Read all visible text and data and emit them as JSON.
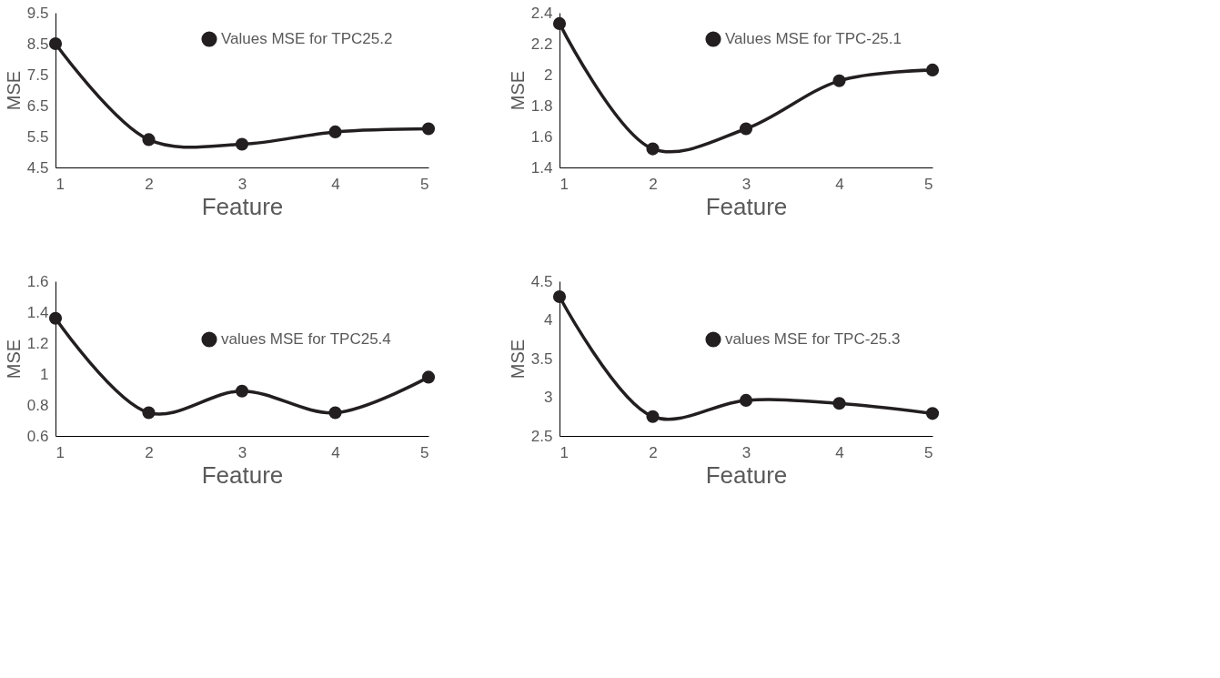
{
  "chart_data": [
    {
      "type": "line",
      "xlabel": "Feature",
      "ylabel": "MSE",
      "x": [
        1,
        2,
        3,
        4,
        5
      ],
      "xlim": [
        1,
        5
      ],
      "xticks": [
        1,
        2,
        3,
        4,
        5
      ],
      "ylim": [
        4.5,
        9.5
      ],
      "yticks": [
        4.5,
        5.5,
        6.5,
        7.5,
        8.5,
        9.5
      ],
      "grid": false,
      "legend": "top right",
      "marker": "circle",
      "line_style": "solid",
      "series": [
        {
          "name": "Values MSE for TPC25.2",
          "color": "#231f20",
          "values": [
            8.5,
            5.4,
            5.25,
            5.65,
            5.75
          ]
        }
      ]
    },
    {
      "type": "line",
      "xlabel": "Feature",
      "ylabel": "MSE",
      "x": [
        1,
        2,
        3,
        4,
        5
      ],
      "xlim": [
        1,
        5
      ],
      "xticks": [
        1,
        2,
        3,
        4,
        5
      ],
      "ylim": [
        1.4,
        2.4
      ],
      "yticks": [
        1.4,
        1.6,
        1.8,
        2,
        2.2,
        2.4
      ],
      "grid": false,
      "legend": "top right",
      "marker": "circle",
      "line_style": "solid",
      "series": [
        {
          "name": "Values MSE for TPC-25.1",
          "color": "#231f20",
          "values": [
            2.33,
            1.52,
            1.65,
            1.96,
            2.03
          ]
        }
      ]
    },
    {
      "type": "line",
      "xlabel": "Feature",
      "ylabel": "MSE",
      "x": [
        1,
        2,
        3,
        4,
        5
      ],
      "xlim": [
        1,
        5
      ],
      "xticks": [
        1,
        2,
        3,
        4,
        5
      ],
      "ylim": [
        0.6,
        1.6
      ],
      "yticks": [
        0.6,
        0.8,
        1,
        1.2,
        1.4,
        1.6
      ],
      "grid": false,
      "legend": "right",
      "marker": "circle",
      "line_style": "solid",
      "series": [
        {
          "name": "values MSE for TPC25.4",
          "color": "#231f20",
          "values": [
            1.36,
            0.75,
            0.89,
            0.75,
            0.98
          ]
        }
      ]
    },
    {
      "type": "line",
      "xlabel": "Feature",
      "ylabel": "MSE",
      "x": [
        1,
        2,
        3,
        4,
        5
      ],
      "xlim": [
        1,
        5
      ],
      "xticks": [
        1,
        2,
        3,
        4,
        5
      ],
      "ylim": [
        2.5,
        4.5
      ],
      "yticks": [
        2.5,
        3,
        3.5,
        4,
        4.5
      ],
      "grid": false,
      "legend": "right",
      "marker": "circle",
      "line_style": "solid",
      "series": [
        {
          "name": "values MSE for TPC-25.3",
          "color": "#231f20",
          "values": [
            4.3,
            2.75,
            2.96,
            2.92,
            2.79
          ]
        }
      ]
    }
  ]
}
